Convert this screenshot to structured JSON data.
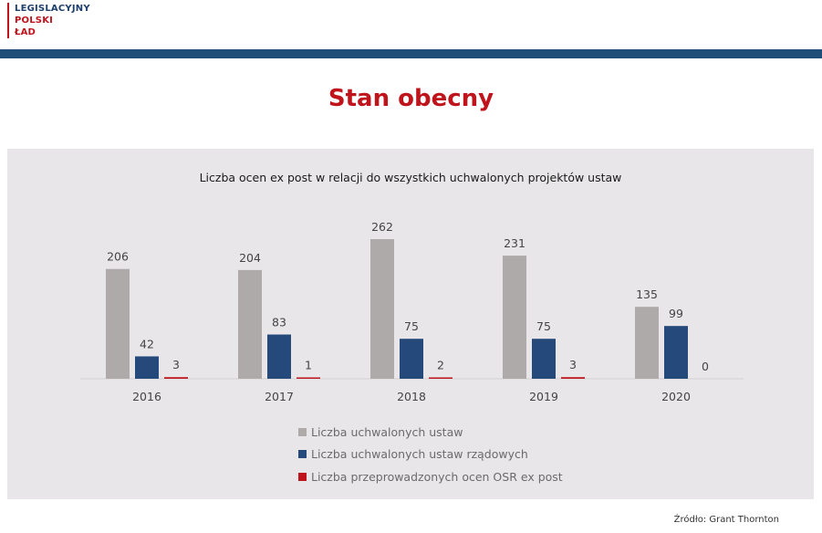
{
  "logo": {
    "line1": "LEGISLACYJNY",
    "line2": "POLSKI",
    "line3": "ŁAD"
  },
  "page_title": "Stan obecny",
  "source": "Źródło: Grant Thornton",
  "colors": {
    "brand_red": "#c0141c",
    "brand_blue": "#1f4e79"
  },
  "chart_data": {
    "type": "bar",
    "title": "Liczba ocen ex post w relacji do wszystkich uchwalonych projektów ustaw",
    "categories": [
      "2016",
      "2017",
      "2018",
      "2019",
      "2020"
    ],
    "series": [
      {
        "name": "Liczba uchwalonych ustaw",
        "color": "#aeaaaa",
        "values": [
          206,
          204,
          262,
          231,
          135
        ]
      },
      {
        "name": "Liczba uchwalonych ustaw rządowych",
        "color": "#24497a",
        "values": [
          42,
          83,
          75,
          75,
          99
        ]
      },
      {
        "name": "Liczba przeprowadzonych ocen OSR ex post",
        "color": "#c0141c",
        "values": [
          3,
          1,
          2,
          3,
          0
        ]
      }
    ],
    "ylim": [
      0,
      262
    ],
    "legend_position": "bottom",
    "grid": false,
    "data_labels": true
  }
}
